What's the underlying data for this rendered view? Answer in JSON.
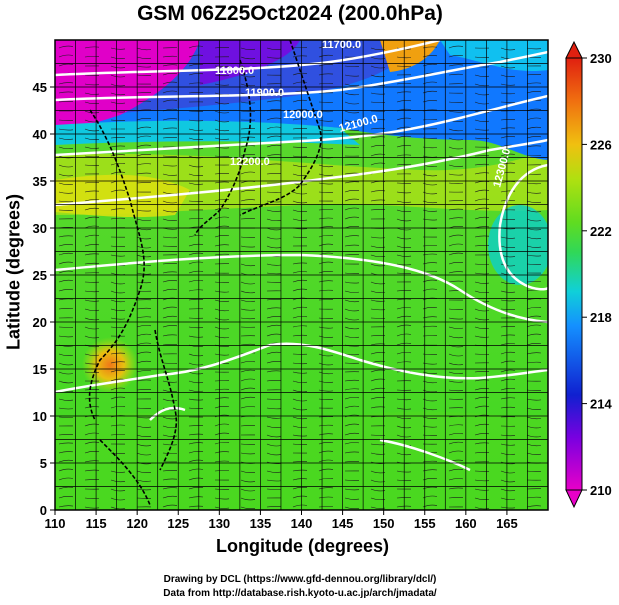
{
  "title": "GSM 06Z25Oct2024 (200.0hPa)",
  "chart_data": {
    "type": "heatmap",
    "title": "GSM 06Z25Oct2024 (200.0hPa)",
    "xlabel": "Longitude (degrees)",
    "ylabel": "Latitude  (degrees)",
    "xlim": [
      110,
      170
    ],
    "ylim": [
      0,
      50
    ],
    "x_ticks": [
      110,
      115,
      120,
      125,
      130,
      135,
      140,
      145,
      150,
      155,
      160,
      165
    ],
    "y_ticks": [
      0,
      5,
      10,
      15,
      20,
      25,
      30,
      35,
      40,
      45
    ],
    "grid": true,
    "colorbar": {
      "min": 210,
      "max": 230,
      "ticks": [
        210,
        214,
        218,
        222,
        226,
        230
      ],
      "colors": [
        "#e800c8",
        "#6a00e0",
        "#1020d0",
        "#1478ff",
        "#10c8e0",
        "#10d890",
        "#40d830",
        "#88e018",
        "#d8e010",
        "#f0b010",
        "#f07010",
        "#e02010"
      ]
    },
    "contour_labels": [
      "11700.0",
      "11800.0",
      "11900.0",
      "12000.0",
      "12100.0",
      "12200.0",
      "12300.0"
    ]
  },
  "credits": {
    "line1": "Drawing by DCL (https://www.gfd-dennou.org/library/dcl/)",
    "line2": "Data from http://database.rish.kyoto-u.ac.jp/arch/jmadata/"
  }
}
